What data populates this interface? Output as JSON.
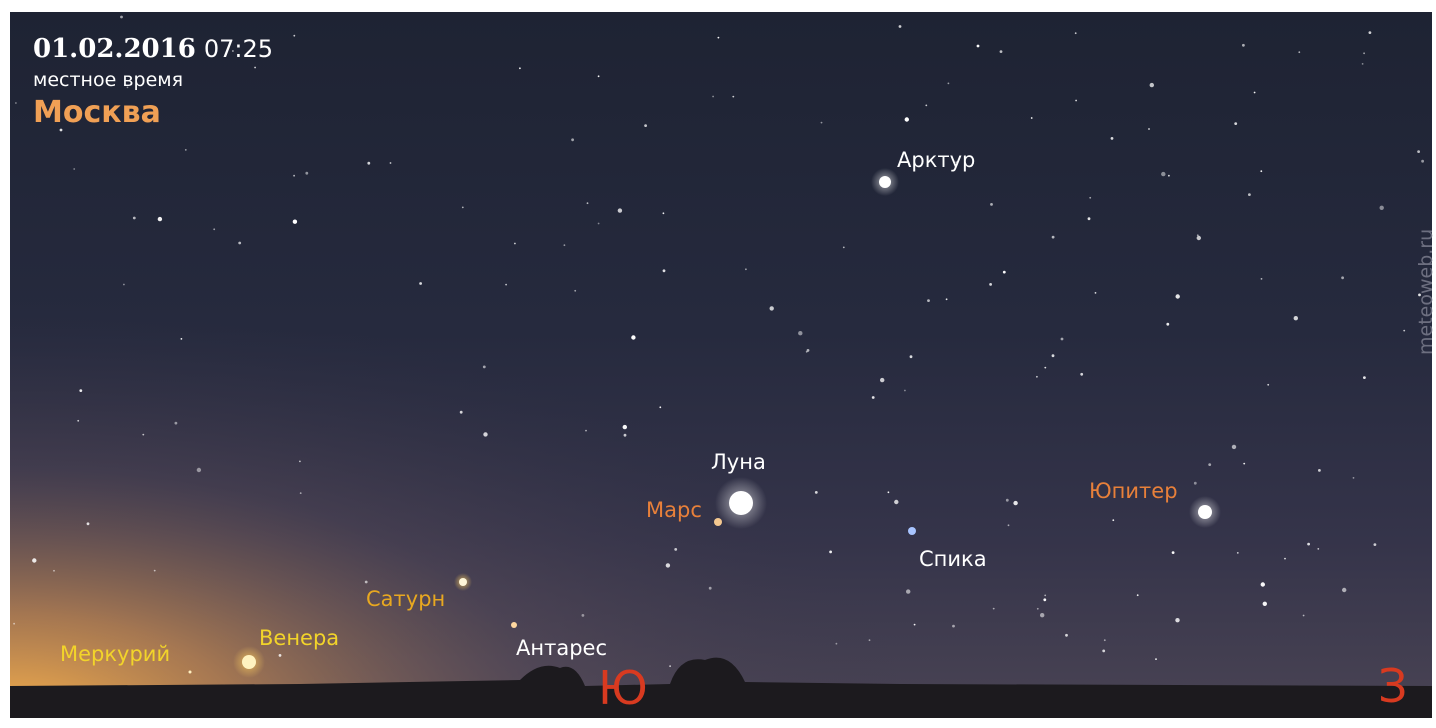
{
  "header": {
    "date": "01.02.2016",
    "time": "07:25",
    "subtitle": "местное время",
    "city": "Москва"
  },
  "objects": [
    {
      "label": "Арктур"
    },
    {
      "label": "Луна"
    },
    {
      "label": "Марс"
    },
    {
      "label": "Юпитер"
    },
    {
      "label": "Спика"
    },
    {
      "label": "Сатурн"
    },
    {
      "label": "Венера"
    },
    {
      "label": "Меркурий"
    },
    {
      "label": "Антарес"
    }
  ],
  "directions": {
    "south": "Ю",
    "west": "З"
  },
  "watermark": "meteoweb.ru"
}
